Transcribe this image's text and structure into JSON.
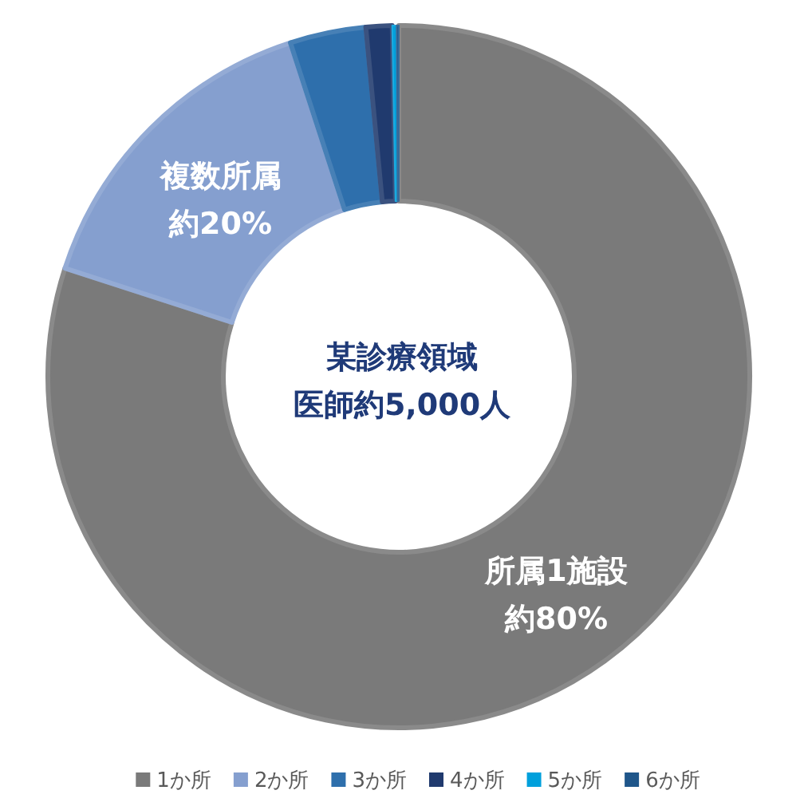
{
  "chart_data": {
    "type": "donut",
    "categories": [
      "1か所",
      "2か所",
      "3か所",
      "4か所",
      "5か所",
      "6か所"
    ],
    "values": [
      80.0,
      15.0,
      3.5,
      1.2,
      0.2,
      0.1
    ],
    "colors": [
      "#7a7a7a",
      "#859fcf",
      "#2e6fac",
      "#203a6e",
      "#00a0dc",
      "#1f568a"
    ],
    "annotations": [
      "所属1施設",
      "約80%",
      "複数所属",
      "約20%",
      "某診療領域",
      "医師約5,000人"
    ],
    "legend": "bottom"
  }
}
